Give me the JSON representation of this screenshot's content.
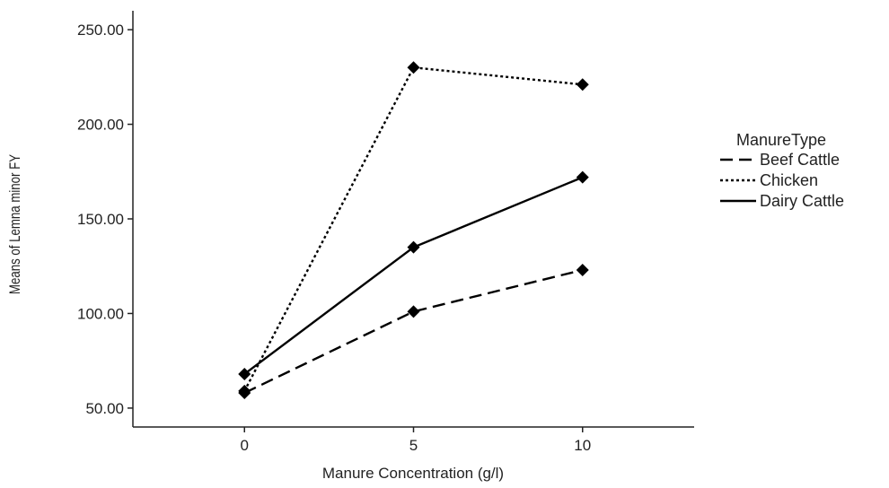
{
  "chart_data": {
    "type": "line",
    "x": [
      0,
      5,
      10
    ],
    "xticks": [
      "0",
      "5",
      "10"
    ],
    "xlim": [
      -3.3,
      13.3
    ],
    "xlabel": "Manure Concentration (g/l)",
    "ylabel": "Means of Lemna minor FY",
    "yticks": [
      "50.00",
      "100.00",
      "150.00",
      "200.00",
      "250.00"
    ],
    "ytick_values": [
      50,
      100,
      150,
      200,
      250
    ],
    "ylim": [
      40,
      260
    ],
    "grid": false,
    "legend": {
      "title": "ManureType",
      "placement": "right"
    },
    "series": [
      {
        "name": "Beef Cattle",
        "values": [
          58,
          101,
          123
        ],
        "dash": "dashed",
        "color": "#000000"
      },
      {
        "name": "Chicken",
        "values": [
          59,
          230,
          221
        ],
        "dash": "dotted",
        "color": "#000000"
      },
      {
        "name": "Dairy Cattle",
        "values": [
          68,
          135,
          172
        ],
        "dash": "solid",
        "color": "#000000"
      }
    ]
  }
}
